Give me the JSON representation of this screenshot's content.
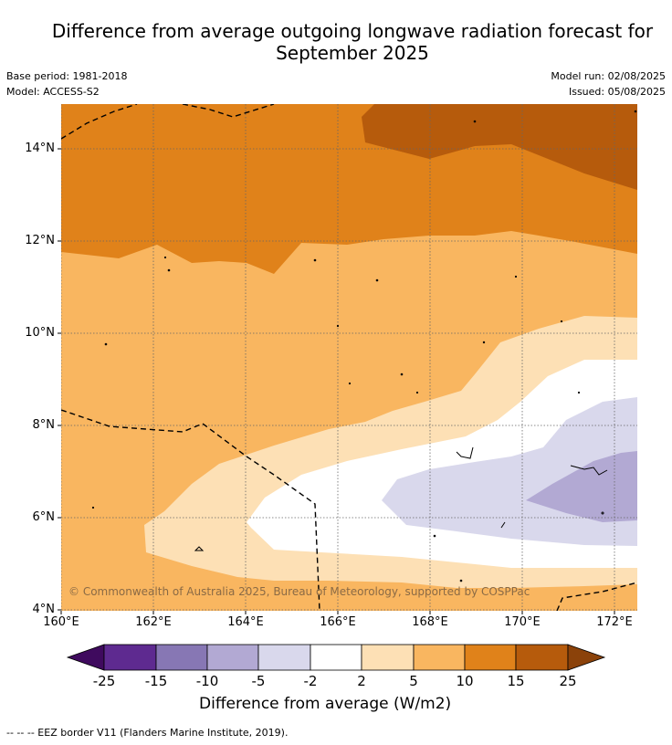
{
  "title_line1": "Difference from average outgoing longwave radiation forecast for",
  "title_line2": "September 2025",
  "meta": {
    "base_period": "Base period: 1981-2018",
    "model": "Model: ACCESS-S2",
    "model_run": "Model run: 02/08/2025",
    "issued": "Issued: 05/08/2025"
  },
  "axes": {
    "y_ticks": [
      "14°N",
      "12°N",
      "10°N",
      "8°N",
      "6°N",
      "4°N"
    ],
    "x_ticks": [
      "160°E",
      "162°E",
      "164°E",
      "166°E",
      "168°E",
      "170°E",
      "172°E"
    ]
  },
  "copyright": "© Commonwealth of Australia 2025, Bureau of Meteorology, supported by COSPPac",
  "colorbar": {
    "labels": [
      "-25",
      "-15",
      "-10",
      "-5",
      "-2",
      "2",
      "5",
      "10",
      "15",
      "25"
    ],
    "colors": [
      "#3f0a5e",
      "#5e2a90",
      "#8777b4",
      "#b2a9d3",
      "#d9d8ec",
      "#ffffff",
      "#fde0b5",
      "#f9b660",
      "#e0821a",
      "#b65b0c",
      "#8b420a"
    ],
    "title": "Difference from average (W/m2)"
  },
  "footer": "--  --  -- EEZ border V11 (Flanders Marine Institute, 2019)."
}
